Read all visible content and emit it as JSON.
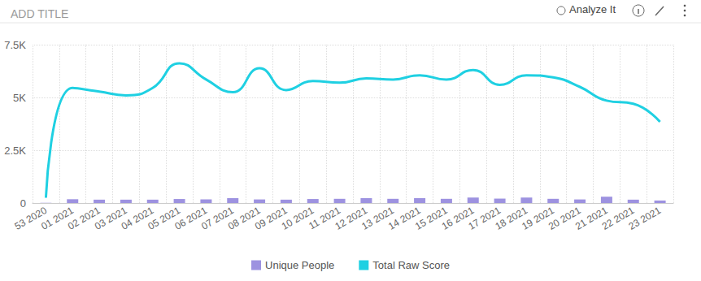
{
  "chart_data": {
    "type": "line",
    "title": "ADD TITLE",
    "annotations": [
      "Analyze It"
    ],
    "categories": [
      "53 2020",
      "01 2021",
      "02 2021",
      "03 2021",
      "04 2021",
      "05 2021",
      "06 2021",
      "07 2021",
      "08 2021",
      "09 2021",
      "10 2021",
      "11 2021",
      "12 2021",
      "13 2021",
      "14 2021",
      "15 2021",
      "16 2021",
      "17 2021",
      "18 2021",
      "19 2021",
      "20 2021",
      "21 2021",
      "22 2021",
      "23 2021"
    ],
    "series": [
      {
        "name": "Unique People",
        "type": "bar",
        "color": "#9d92e0",
        "values": [
          10,
          180,
          160,
          160,
          160,
          190,
          170,
          230,
          170,
          160,
          190,
          200,
          230,
          200,
          230,
          200,
          260,
          210,
          260,
          200,
          170,
          300,
          160,
          120
        ]
      },
      {
        "name": "Total Raw Score",
        "type": "line",
        "color": "#1fd0e2",
        "line_style": "smooth",
        "values": [
          250,
          5450,
          5280,
          5100,
          5450,
          6620,
          5850,
          5250,
          6380,
          5350,
          5780,
          5700,
          5900,
          5850,
          6050,
          5850,
          6300,
          5600,
          6050,
          5950,
          5500,
          4850,
          4700,
          3850
        ]
      }
    ],
    "ylim": [
      0,
      7500
    ],
    "yticks": [
      0,
      {
        "value": 2500,
        "label": "2.5K"
      },
      {
        "value": 5000,
        "label": "5K"
      },
      {
        "value": 7500,
        "label": "7.5K"
      }
    ],
    "grid": true,
    "legend": "bottom"
  }
}
